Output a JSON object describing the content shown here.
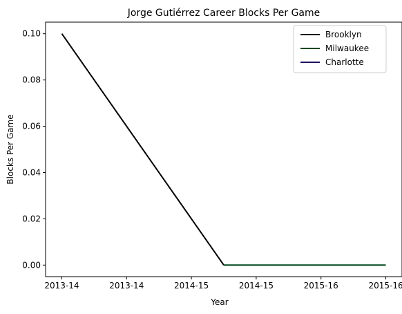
{
  "chart_data": {
    "type": "line",
    "title": "Jorge Gutiérrez  Career Blocks Per Game",
    "xlabel": "Year",
    "ylabel": "Blocks Per Game",
    "categories": [
      "2013-14",
      "2013-14",
      "2014-15",
      "2014-15",
      "2015-16",
      "2015-16"
    ],
    "x": [
      0,
      1,
      2,
      3,
      4,
      5
    ],
    "xlim": [
      -0.25,
      5.25
    ],
    "ylim": [
      -0.005,
      0.105
    ],
    "yticks": [
      0.0,
      0.02,
      0.04,
      0.06,
      0.08,
      0.1
    ],
    "ytick_labels": [
      "0.00",
      "0.02",
      "0.04",
      "0.06",
      "0.08",
      "0.10"
    ],
    "grid": false,
    "legend_position": "top-right",
    "series": [
      {
        "name": "Brooklyn",
        "color": "#000000",
        "points": [
          [
            0,
            0.1
          ],
          [
            2.5,
            0.0
          ]
        ]
      },
      {
        "name": "Milwaukee",
        "color": "#00471B",
        "points": [
          [
            2.5,
            0.0
          ],
          [
            5,
            0.0
          ]
        ]
      },
      {
        "name": "Charlotte",
        "color": "#1D1160",
        "points": []
      }
    ]
  }
}
